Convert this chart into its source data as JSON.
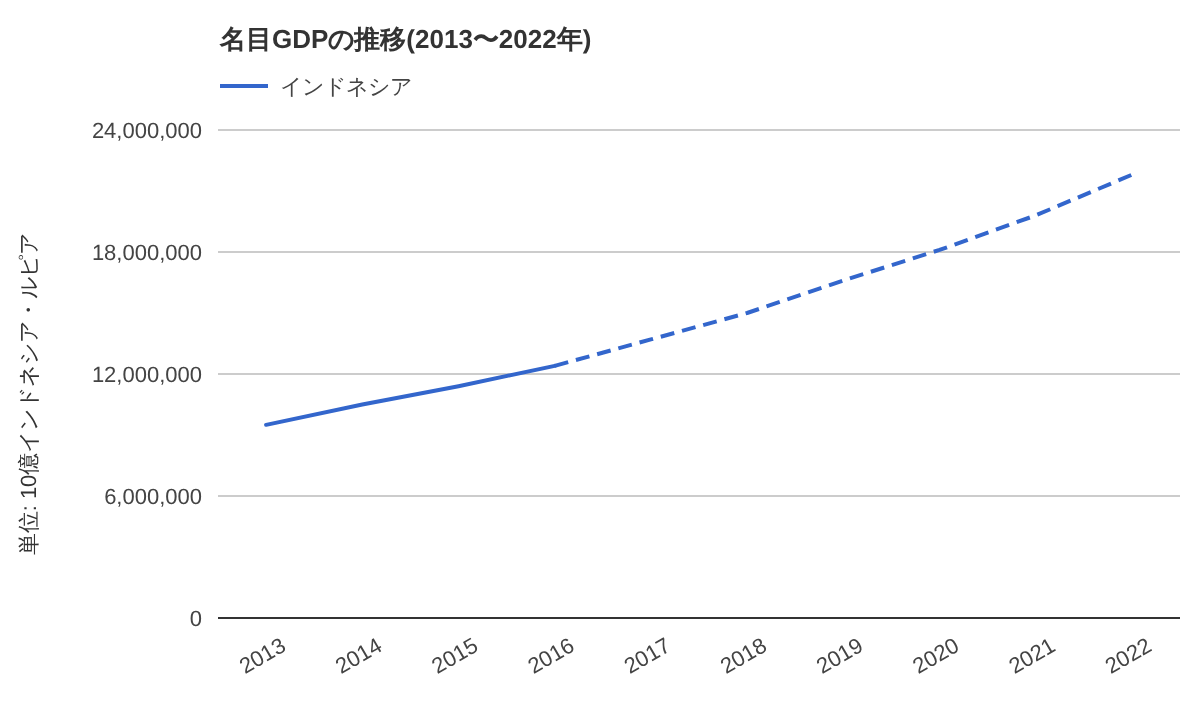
{
  "chart_data": {
    "type": "line",
    "title": "名目GDPの推移(2013〜2022年)",
    "ylabel": "単位: 10億インドネシア・ルピア",
    "categories": [
      "2013",
      "2014",
      "2015",
      "2016",
      "2017",
      "2018",
      "2019",
      "2020",
      "2021",
      "2022"
    ],
    "series": [
      {
        "name": "インドネシア",
        "color": "#3366cc",
        "line_style": "solid",
        "values": [
          9500000,
          10500000,
          11400000,
          12400000,
          null,
          null,
          null,
          null,
          null,
          null
        ]
      },
      {
        "color": "#3366cc",
        "line_style": "dashed",
        "values": [
          null,
          null,
          null,
          12400000,
          13700000,
          15000000,
          16600000,
          18100000,
          19800000,
          21800000
        ]
      }
    ],
    "ylim": [
      0,
      24000000
    ],
    "yticks": [
      0,
      {
        "value": 6000000,
        "label": "6,000,000"
      },
      {
        "value": 12000000,
        "label": "12,000,000"
      },
      {
        "value": 18000000,
        "label": "18,000,000"
      },
      {
        "value": 24000000,
        "label": "24,000,000"
      }
    ],
    "grid": "y",
    "legend": "top left",
    "marker": "none"
  }
}
